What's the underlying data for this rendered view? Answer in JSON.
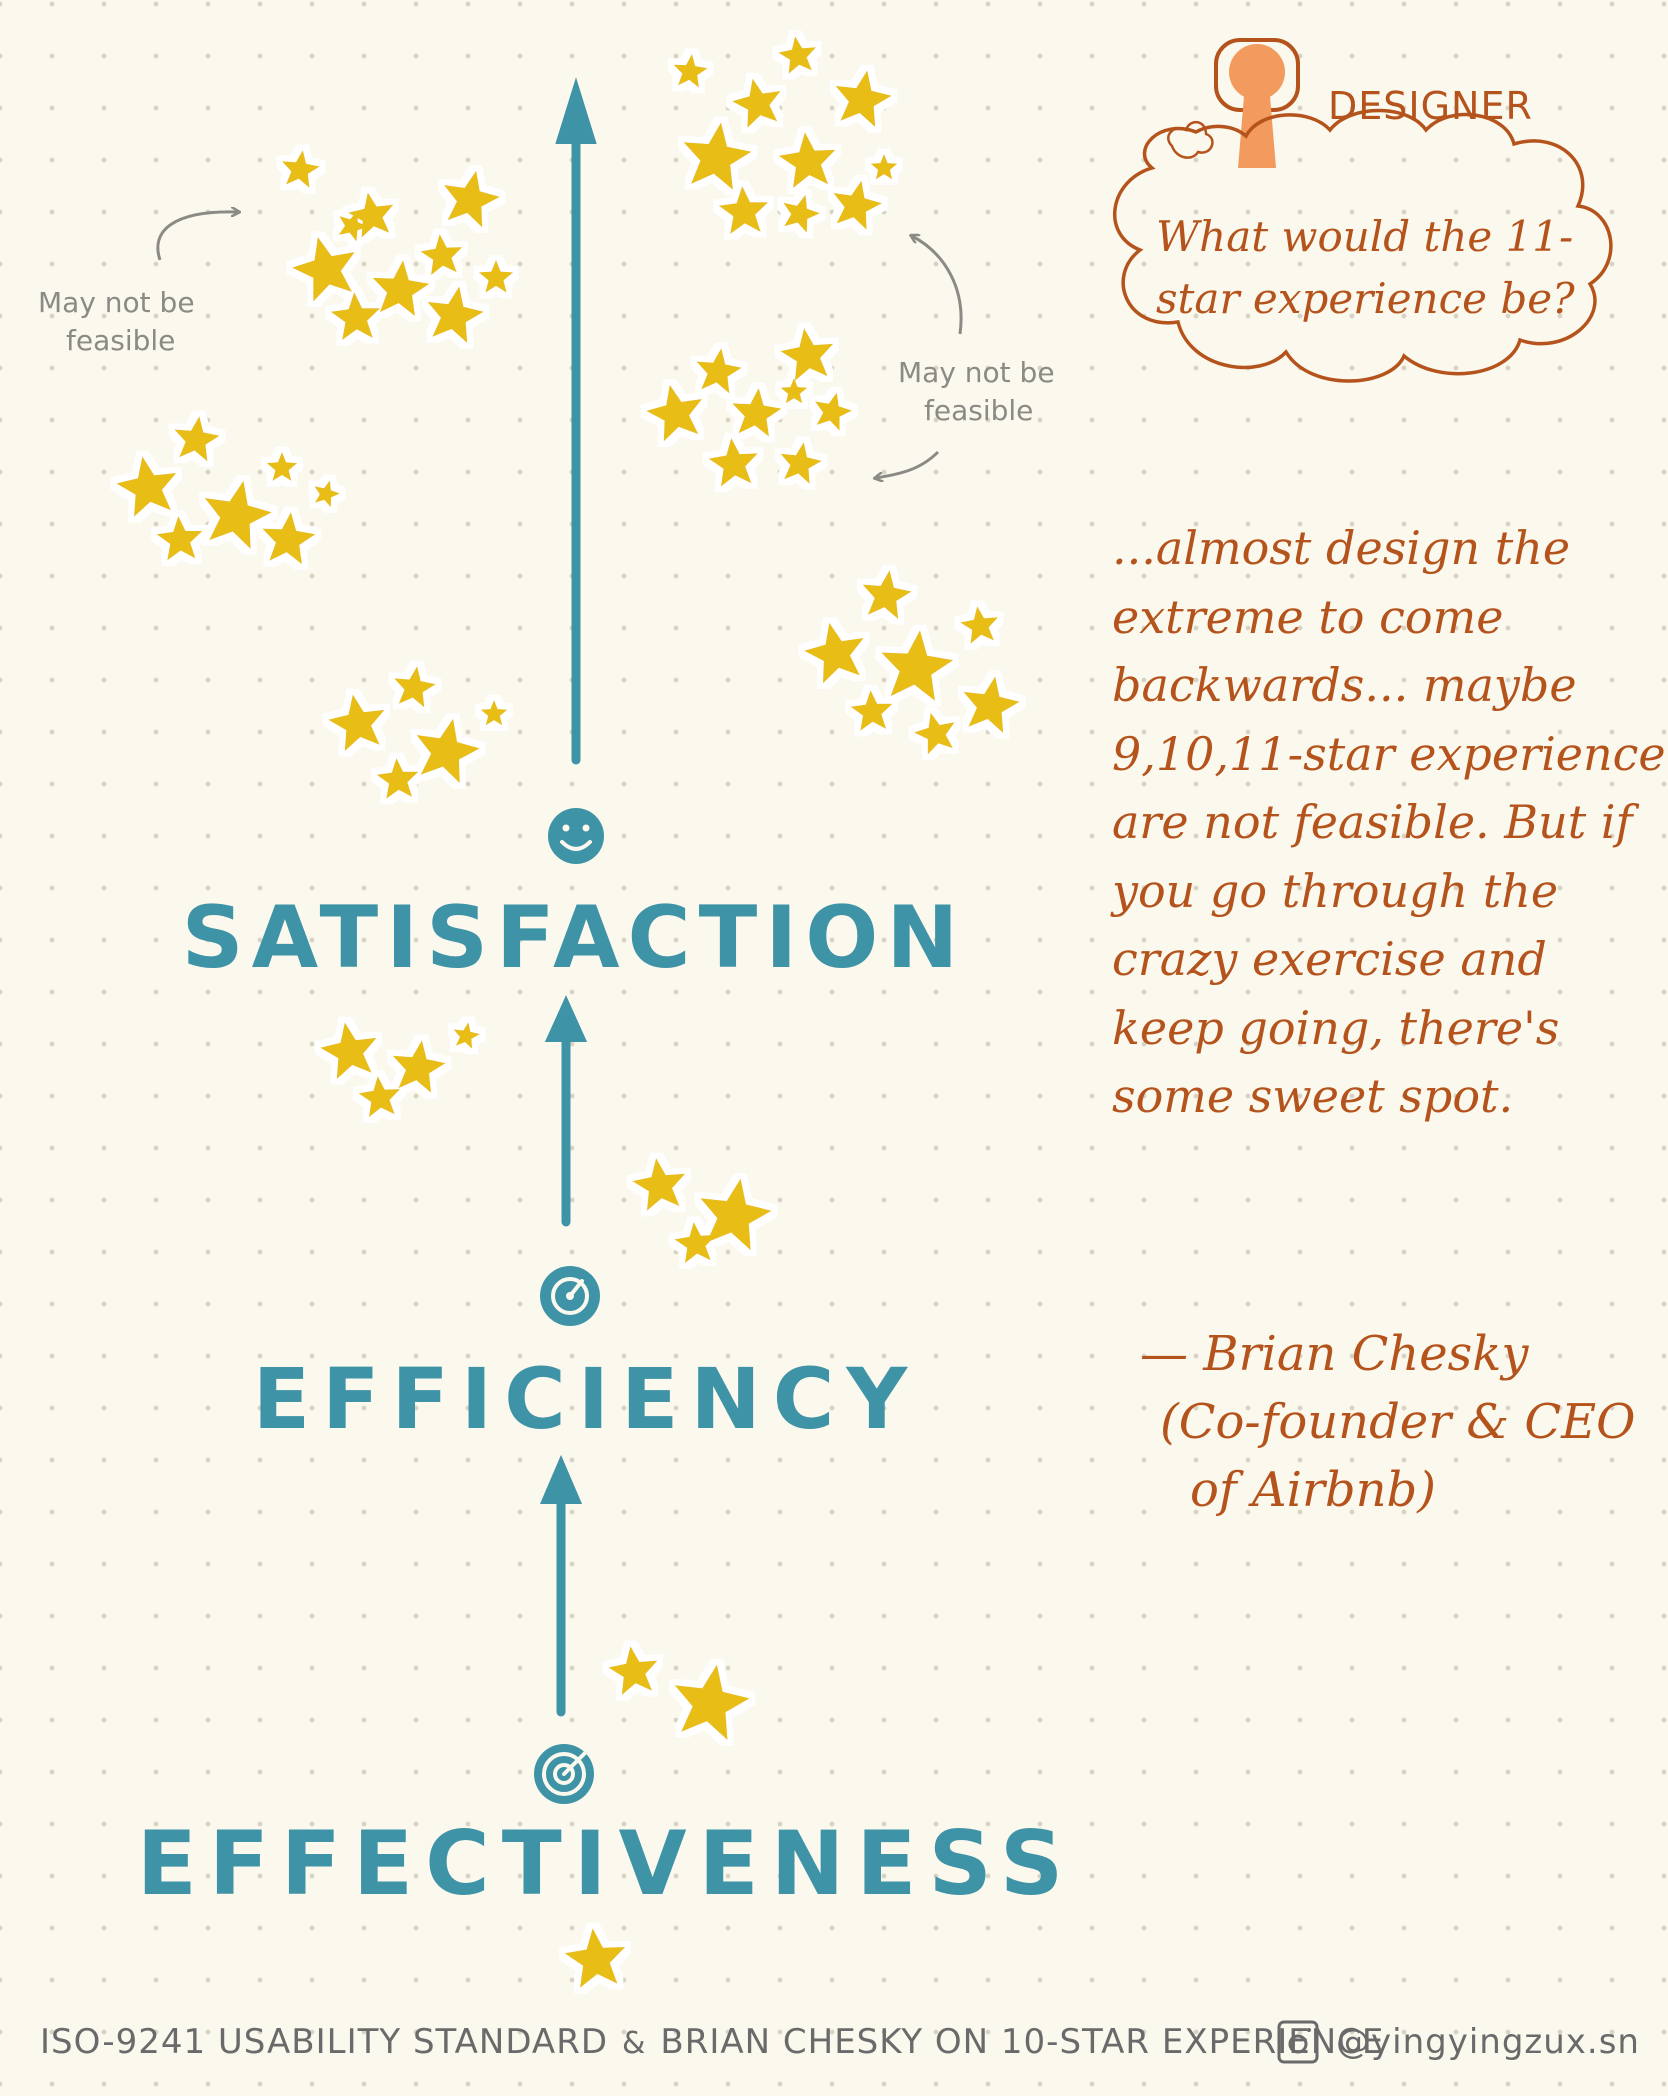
{
  "stages": [
    {
      "label": "SATISFACTION",
      "icon": "smiley-face-icon"
    },
    {
      "label": "EFFICIENCY",
      "icon": "gauge-icon"
    },
    {
      "label": "EFFECTIVENESS",
      "icon": "target-icon"
    }
  ],
  "notes": {
    "left": [
      "May not be",
      "feasible"
    ],
    "right": [
      "May not be",
      "feasible"
    ]
  },
  "designer": {
    "label": "DESIGNER",
    "question": "What would the 11-star experience be?"
  },
  "quote": {
    "text": "...almost design the extreme to come backwards... maybe 9,10,11-star experience are not feasible. But if you go through the crazy exercise and keep going, there's some sweet spot.",
    "attribution_name": "— Brian Chesky",
    "attribution_role": "(Co-founder & CEO",
    "attribution_company": "of Airbnb)"
  },
  "footer": {
    "left": "ISO-9241 USABILITY STANDARD",
    "amp": "&",
    "right": "BRIAN CHESKY ON 10-STAR EXPERIENCE",
    "icon": "instagram-icon",
    "handle": "@yingyingzux.sn"
  },
  "colors": {
    "teal": "#3f93a6",
    "star": "#e8bd12",
    "orange": "#b5531c",
    "person": "#f39a5f",
    "background": "#fbf8ee"
  }
}
